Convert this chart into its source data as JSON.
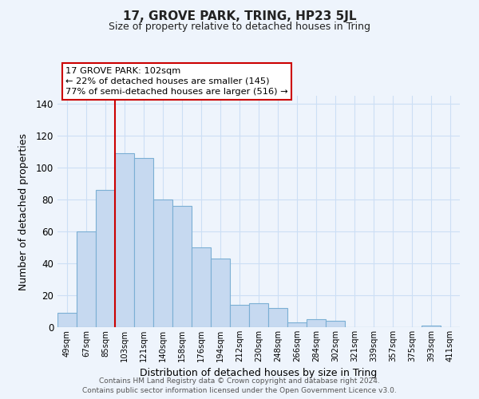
{
  "title": "17, GROVE PARK, TRING, HP23 5JL",
  "subtitle": "Size of property relative to detached houses in Tring",
  "xlabel": "Distribution of detached houses by size in Tring",
  "ylabel": "Number of detached properties",
  "bar_labels": [
    "49sqm",
    "67sqm",
    "85sqm",
    "103sqm",
    "121sqm",
    "140sqm",
    "158sqm",
    "176sqm",
    "194sqm",
    "212sqm",
    "230sqm",
    "248sqm",
    "266sqm",
    "284sqm",
    "302sqm",
    "321sqm",
    "339sqm",
    "357sqm",
    "375sqm",
    "393sqm",
    "411sqm"
  ],
  "bar_values": [
    9,
    60,
    86,
    109,
    106,
    80,
    76,
    50,
    43,
    14,
    15,
    12,
    3,
    5,
    4,
    0,
    0,
    0,
    0,
    1,
    0
  ],
  "bar_color": "#c6d9f0",
  "bar_edge_color": "#7bafd4",
  "vline_x_index": 3,
  "vline_color": "#cc0000",
  "annotation_line1": "17 GROVE PARK: 102sqm",
  "annotation_line2": "← 22% of detached houses are smaller (145)",
  "annotation_line3": "77% of semi-detached houses are larger (516) →",
  "ylim": [
    0,
    145
  ],
  "yticks": [
    0,
    20,
    40,
    60,
    80,
    100,
    120,
    140
  ],
  "footer_line1": "Contains HM Land Registry data © Crown copyright and database right 2024.",
  "footer_line2": "Contains public sector information licensed under the Open Government Licence v3.0.",
  "grid_color": "#ccdff5",
  "background_color": "#eef4fc"
}
